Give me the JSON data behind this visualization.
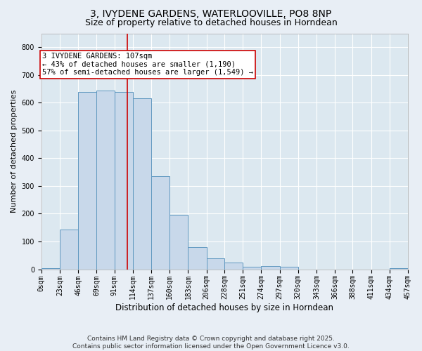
{
  "title_line1": "3, IVYDENE GARDENS, WATERLOOVILLE, PO8 8NP",
  "title_line2": "Size of property relative to detached houses in Horndean",
  "xlabel": "Distribution of detached houses by size in Horndean",
  "ylabel": "Number of detached properties",
  "bar_color": "#c8d8ea",
  "bar_edge_color": "#6098c0",
  "background_color": "#dce8f0",
  "fig_background_color": "#e8eef5",
  "grid_color": "#ffffff",
  "bin_edges": [
    0,
    23,
    46,
    69,
    91,
    114,
    137,
    160,
    183,
    206,
    228,
    251,
    274,
    297,
    320,
    343,
    366,
    388,
    411,
    434,
    457
  ],
  "bar_heights": [
    5,
    143,
    640,
    645,
    640,
    615,
    335,
    195,
    80,
    40,
    25,
    10,
    12,
    8,
    0,
    0,
    0,
    0,
    0,
    5
  ],
  "property_size": 107,
  "red_line_color": "#cc0000",
  "annotation_text": "3 IVYDENE GARDENS: 107sqm\n← 43% of detached houses are smaller (1,190)\n57% of semi-detached houses are larger (1,549) →",
  "annotation_box_color": "#ffffff",
  "annotation_box_edge_color": "#cc0000",
  "ylim": [
    0,
    850
  ],
  "yticks": [
    0,
    100,
    200,
    300,
    400,
    500,
    600,
    700,
    800
  ],
  "footer_text": "Contains HM Land Registry data © Crown copyright and database right 2025.\nContains public sector information licensed under the Open Government Licence v3.0.",
  "title_fontsize": 10,
  "subtitle_fontsize": 9,
  "axis_label_fontsize": 8.5,
  "tick_fontsize": 7,
  "annotation_fontsize": 7.5,
  "footer_fontsize": 6.5,
  "ylabel_fontsize": 8
}
